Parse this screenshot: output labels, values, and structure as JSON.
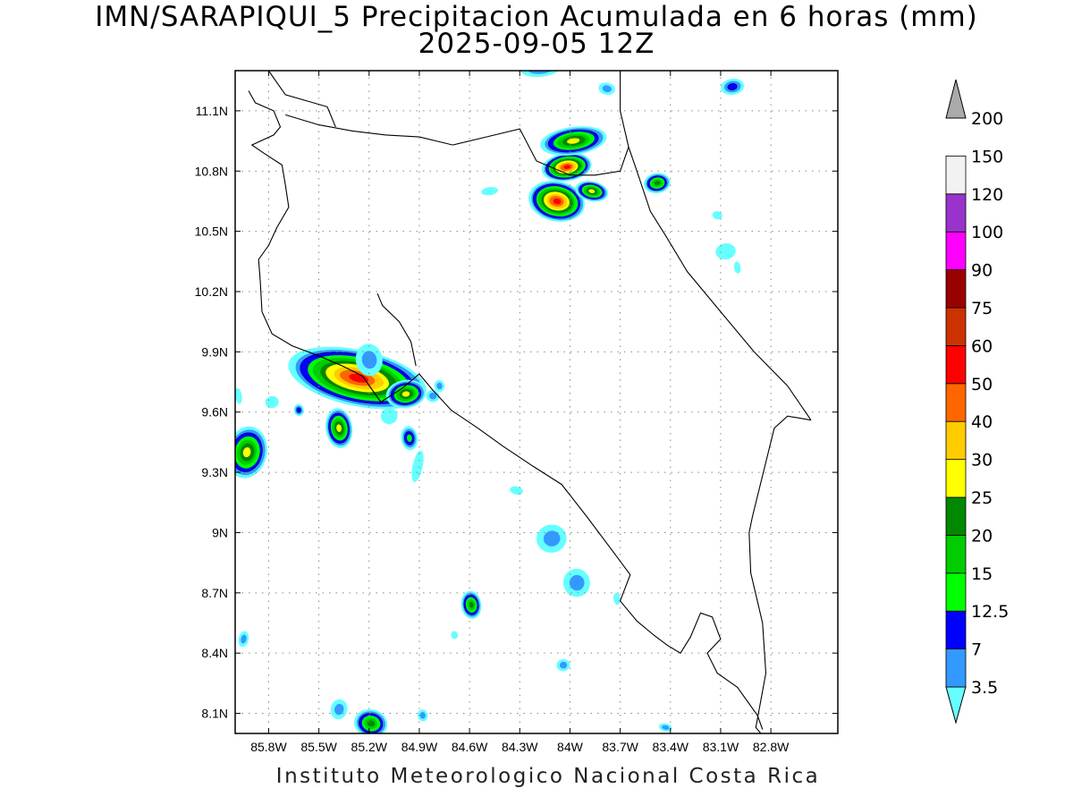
{
  "title_line1": "IMN/SARAPIQUI_5 Precipitacion Acumulada en 6 horas (mm)",
  "title_line2": "2025-09-05 12Z",
  "footer": "Instituto Meteorologico Nacional Costa Rica",
  "map": {
    "lon_range": [
      -86.0,
      -82.4
    ],
    "lat_range": [
      8.0,
      11.3
    ],
    "lat_ticks": [
      {
        "value": 11.1,
        "label": "11.1N"
      },
      {
        "value": 10.8,
        "label": "10.8N"
      },
      {
        "value": 10.5,
        "label": "10.5N"
      },
      {
        "value": 10.2,
        "label": "10.2N"
      },
      {
        "value": 9.9,
        "label": "9.9N"
      },
      {
        "value": 9.6,
        "label": "9.6N"
      },
      {
        "value": 9.3,
        "label": "9.3N"
      },
      {
        "value": 9.0,
        "label": "9N"
      },
      {
        "value": 8.7,
        "label": "8.7N"
      },
      {
        "value": 8.4,
        "label": "8.4N"
      },
      {
        "value": 8.1,
        "label": "8.1N"
      }
    ],
    "lon_ticks": [
      {
        "value": -85.8,
        "label": "85.8W"
      },
      {
        "value": -85.5,
        "label": "85.5W"
      },
      {
        "value": -85.2,
        "label": "85.2W"
      },
      {
        "value": -84.9,
        "label": "84.9W"
      },
      {
        "value": -84.6,
        "label": "84.6W"
      },
      {
        "value": -84.3,
        "label": "84.3W"
      },
      {
        "value": -84.0,
        "label": "84W"
      },
      {
        "value": -83.7,
        "label": "83.7W"
      },
      {
        "value": -83.4,
        "label": "83.4W"
      },
      {
        "value": -83.1,
        "label": "83.1W"
      },
      {
        "value": -82.8,
        "label": "82.8W"
      }
    ],
    "grid": "dotted"
  },
  "colorbar": {
    "levels": [
      {
        "label": "3.5",
        "color": "#66ffff"
      },
      {
        "label": "7",
        "color": "#3399ff"
      },
      {
        "label": "12.5",
        "color": "#0000ff"
      },
      {
        "label": "15",
        "color": "#00ff00"
      },
      {
        "label": "20",
        "color": "#00cc00"
      },
      {
        "label": "25",
        "color": "#008800"
      },
      {
        "label": "30",
        "color": "#ffff00"
      },
      {
        "label": "40",
        "color": "#ffcc00"
      },
      {
        "label": "50",
        "color": "#ff6600"
      },
      {
        "label": "60",
        "color": "#ff0000"
      },
      {
        "label": "75",
        "color": "#cc3300"
      },
      {
        "label": "90",
        "color": "#990000"
      },
      {
        "label": "100",
        "color": "#ff00ff"
      },
      {
        "label": "120",
        "color": "#9933cc"
      },
      {
        "label": "150",
        "color": "#f2f2f2"
      },
      {
        "label": "200",
        "color": "#aaaaaa"
      }
    ]
  },
  "rain_cells": [
    {
      "lon": -85.27,
      "lat": 9.77,
      "rx": 0.42,
      "ry": 0.14,
      "max": 60
    },
    {
      "lon": -84.98,
      "lat": 9.69,
      "rx": 0.12,
      "ry": 0.07,
      "max": 30
    },
    {
      "lon": -85.38,
      "lat": 9.52,
      "rx": 0.08,
      "ry": 0.1,
      "max": 30
    },
    {
      "lon": -85.93,
      "lat": 9.4,
      "rx": 0.12,
      "ry": 0.13,
      "max": 30
    },
    {
      "lon": -85.62,
      "lat": 9.61,
      "rx": 0.03,
      "ry": 0.03,
      "max": 12.5
    },
    {
      "lon": -84.96,
      "lat": 9.47,
      "rx": 0.05,
      "ry": 0.06,
      "max": 15
    },
    {
      "lon": -84.08,
      "lat": 10.65,
      "rx": 0.17,
      "ry": 0.1,
      "max": 60
    },
    {
      "lon": -84.02,
      "lat": 10.82,
      "rx": 0.15,
      "ry": 0.07,
      "max": 60
    },
    {
      "lon": -83.98,
      "lat": 10.95,
      "rx": 0.2,
      "ry": 0.07,
      "max": 30
    },
    {
      "lon": -83.87,
      "lat": 10.7,
      "rx": 0.1,
      "ry": 0.05,
      "max": 30
    },
    {
      "lon": -83.48,
      "lat": 10.74,
      "rx": 0.08,
      "ry": 0.05,
      "max": 25
    },
    {
      "lon": -84.59,
      "lat": 8.64,
      "rx": 0.06,
      "ry": 0.07,
      "max": 25
    },
    {
      "lon": -85.19,
      "lat": 8.05,
      "rx": 0.1,
      "ry": 0.07,
      "max": 25
    },
    {
      "lon": -84.17,
      "lat": 11.32,
      "rx": 0.13,
      "ry": 0.05,
      "max": 12.5
    },
    {
      "lon": -83.03,
      "lat": 11.22,
      "rx": 0.07,
      "ry": 0.04,
      "max": 12.5
    },
    {
      "lon": -83.78,
      "lat": 11.21,
      "rx": 0.05,
      "ry": 0.03,
      "max": 7
    },
    {
      "lon": -84.11,
      "lat": 8.97,
      "rx": 0.09,
      "ry": 0.07,
      "max": 7
    },
    {
      "lon": -83.96,
      "lat": 8.75,
      "rx": 0.08,
      "ry": 0.07,
      "max": 7
    },
    {
      "lon": -85.95,
      "lat": 8.47,
      "rx": 0.03,
      "ry": 0.04,
      "max": 7
    },
    {
      "lon": -84.04,
      "lat": 8.34,
      "rx": 0.04,
      "ry": 0.03,
      "max": 7
    },
    {
      "lon": -84.88,
      "lat": 8.09,
      "rx": 0.03,
      "ry": 0.03,
      "max": 7
    },
    {
      "lon": -84.82,
      "lat": 9.68,
      "rx": 0.04,
      "ry": 0.03,
      "max": 7
    },
    {
      "lon": -84.78,
      "lat": 9.73,
      "rx": 0.03,
      "ry": 0.03,
      "max": 7
    },
    {
      "lon": -85.08,
      "lat": 9.58,
      "rx": 0.05,
      "ry": 0.04,
      "max": 3.5
    },
    {
      "lon": -84.91,
      "lat": 9.33,
      "rx": 0.03,
      "ry": 0.08,
      "max": 3.5
    },
    {
      "lon": -85.2,
      "lat": 9.86,
      "rx": 0.08,
      "ry": 0.08,
      "max": 7
    },
    {
      "lon": -84.48,
      "lat": 10.7,
      "rx": 0.05,
      "ry": 0.02,
      "max": 3.5
    },
    {
      "lon": -84.32,
      "lat": 9.21,
      "rx": 0.04,
      "ry": 0.02,
      "max": 3.5
    },
    {
      "lon": -83.07,
      "lat": 10.4,
      "rx": 0.06,
      "ry": 0.04,
      "max": 3.5
    },
    {
      "lon": -83.0,
      "lat": 10.32,
      "rx": 0.02,
      "ry": 0.03,
      "max": 3.5
    },
    {
      "lon": -83.12,
      "lat": 10.58,
      "rx": 0.03,
      "ry": 0.02,
      "max": 3.5
    },
    {
      "lon": -85.78,
      "lat": 9.65,
      "rx": 0.04,
      "ry": 0.03,
      "max": 3.5
    },
    {
      "lon": -85.98,
      "lat": 9.68,
      "rx": 0.02,
      "ry": 0.04,
      "max": 3.5
    },
    {
      "lon": -83.43,
      "lat": 8.03,
      "rx": 0.04,
      "ry": 0.02,
      "max": 7
    },
    {
      "lon": -83.72,
      "lat": 8.67,
      "rx": 0.02,
      "ry": 0.03,
      "max": 3.5
    },
    {
      "lon": -84.69,
      "lat": 8.49,
      "rx": 0.02,
      "ry": 0.02,
      "max": 3.5
    },
    {
      "lon": -85.38,
      "lat": 8.12,
      "rx": 0.05,
      "ry": 0.05,
      "max": 7
    }
  ],
  "boundaries": [
    {
      "name": "coast-pacific",
      "points": [
        [
          -85.92,
          11.2
        ],
        [
          -85.88,
          11.14
        ],
        [
          -85.77,
          11.1
        ],
        [
          -85.73,
          11.02
        ],
        [
          -85.77,
          10.98
        ],
        [
          -85.9,
          10.93
        ],
        [
          -85.83,
          10.89
        ],
        [
          -85.72,
          10.83
        ],
        [
          -85.7,
          10.73
        ],
        [
          -85.68,
          10.62
        ],
        [
          -85.75,
          10.52
        ],
        [
          -85.8,
          10.43
        ],
        [
          -85.86,
          10.36
        ],
        [
          -85.85,
          10.25
        ],
        [
          -85.84,
          10.1
        ],
        [
          -85.78,
          9.99
        ],
        [
          -85.66,
          9.93
        ],
        [
          -85.5,
          9.88
        ],
        [
          -85.36,
          9.83
        ],
        [
          -85.24,
          9.78
        ],
        [
          -85.13,
          9.65
        ],
        [
          -85.0,
          9.72
        ],
        [
          -84.9,
          9.79
        ],
        [
          -84.82,
          9.71
        ],
        [
          -84.71,
          9.61
        ],
        [
          -84.55,
          9.52
        ],
        [
          -84.4,
          9.43
        ],
        [
          -84.22,
          9.33
        ],
        [
          -84.05,
          9.24
        ],
        [
          -83.9,
          9.08
        ],
        [
          -83.72,
          8.88
        ],
        [
          -83.64,
          8.79
        ],
        [
          -83.7,
          8.66
        ],
        [
          -83.6,
          8.56
        ],
        [
          -83.5,
          8.49
        ],
        [
          -83.42,
          8.44
        ],
        [
          -83.34,
          8.4
        ],
        [
          -83.28,
          8.48
        ],
        [
          -83.22,
          8.6
        ],
        [
          -83.15,
          8.58
        ],
        [
          -83.1,
          8.47
        ],
        [
          -83.18,
          8.4
        ],
        [
          -83.12,
          8.3
        ],
        [
          -83.0,
          8.23
        ],
        [
          -82.88,
          8.09
        ],
        [
          -82.85,
          8.02
        ]
      ]
    },
    {
      "name": "nicoya-gulf-inner",
      "points": [
        [
          -84.92,
          9.83
        ],
        [
          -84.95,
          9.95
        ],
        [
          -85.02,
          10.05
        ],
        [
          -85.12,
          10.13
        ],
        [
          -85.15,
          10.19
        ]
      ]
    },
    {
      "name": "border-nicaragua",
      "points": [
        [
          -85.7,
          11.08
        ],
        [
          -85.5,
          11.03
        ],
        [
          -85.3,
          11.0
        ],
        [
          -85.1,
          10.98
        ],
        [
          -84.9,
          10.97
        ],
        [
          -84.7,
          10.93
        ],
        [
          -84.5,
          10.97
        ],
        [
          -84.3,
          11.01
        ],
        [
          -84.2,
          10.85
        ],
        [
          -84.0,
          10.78
        ],
        [
          -83.85,
          10.78
        ],
        [
          -83.7,
          10.8
        ],
        [
          -83.65,
          10.92
        ]
      ]
    },
    {
      "name": "lake-nicaragua-shore",
      "points": [
        [
          -85.4,
          11.02
        ],
        [
          -85.45,
          11.12
        ],
        [
          -85.7,
          11.18
        ],
        [
          -85.8,
          11.3
        ]
      ]
    },
    {
      "name": "coast-caribbean",
      "points": [
        [
          -83.7,
          11.3
        ],
        [
          -83.7,
          11.1
        ],
        [
          -83.65,
          10.92
        ],
        [
          -83.6,
          10.8
        ],
        [
          -83.52,
          10.6
        ],
        [
          -83.43,
          10.48
        ],
        [
          -83.3,
          10.3
        ],
        [
          -83.1,
          10.1
        ],
        [
          -82.9,
          9.9
        ],
        [
          -82.7,
          9.73
        ],
        [
          -82.56,
          9.56
        ]
      ]
    },
    {
      "name": "border-panama",
      "points": [
        [
          -82.56,
          9.56
        ],
        [
          -82.7,
          9.58
        ],
        [
          -82.78,
          9.52
        ],
        [
          -82.91,
          9.08
        ],
        [
          -82.93,
          9.0
        ],
        [
          -82.92,
          8.8
        ],
        [
          -82.85,
          8.55
        ],
        [
          -82.83,
          8.3
        ],
        [
          -82.89,
          8.03
        ],
        [
          -82.86,
          8.0
        ]
      ]
    }
  ]
}
